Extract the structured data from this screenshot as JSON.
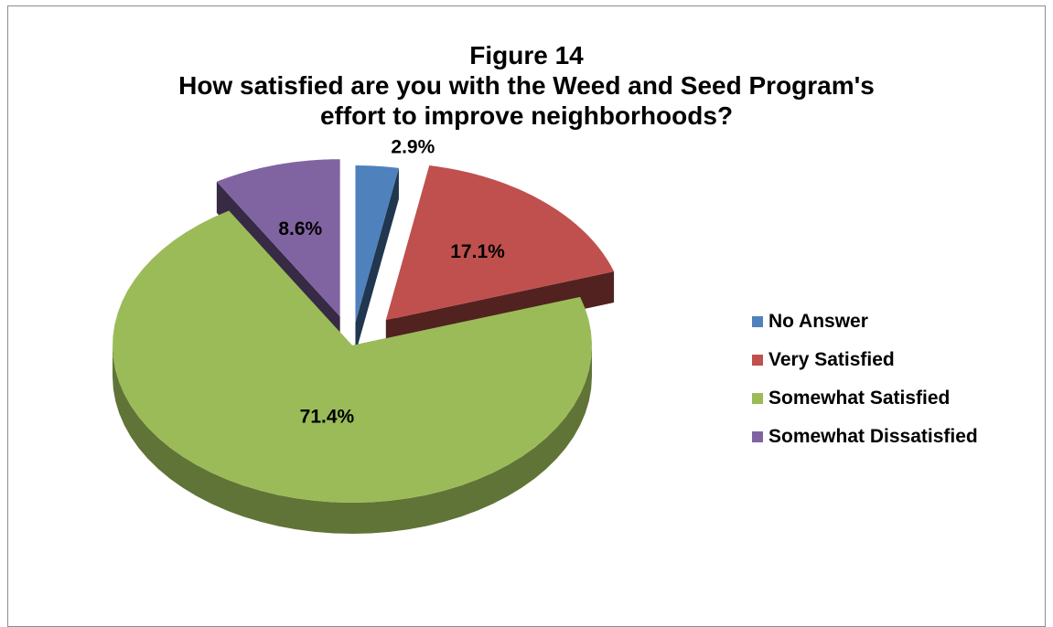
{
  "chart_data": {
    "type": "pie",
    "title": [
      "Figure 14",
      "How satisfied are you with the Weed and Seed Program's",
      "effort to improve neighborhoods?"
    ],
    "categories": [
      "No Answer",
      "Very Satisfied",
      "Somewhat Satisfied",
      "Somewhat Dissatisfied"
    ],
    "values": [
      2.9,
      17.1,
      71.4,
      8.6
    ],
    "labels": [
      "2.9%",
      "17.1%",
      "71.4%",
      "8.6%"
    ],
    "colors": [
      "#4f81bd",
      "#c0504d",
      "#9bbb59",
      "#8064a2"
    ],
    "legend_position": "right",
    "style": "3d exploded pie"
  }
}
